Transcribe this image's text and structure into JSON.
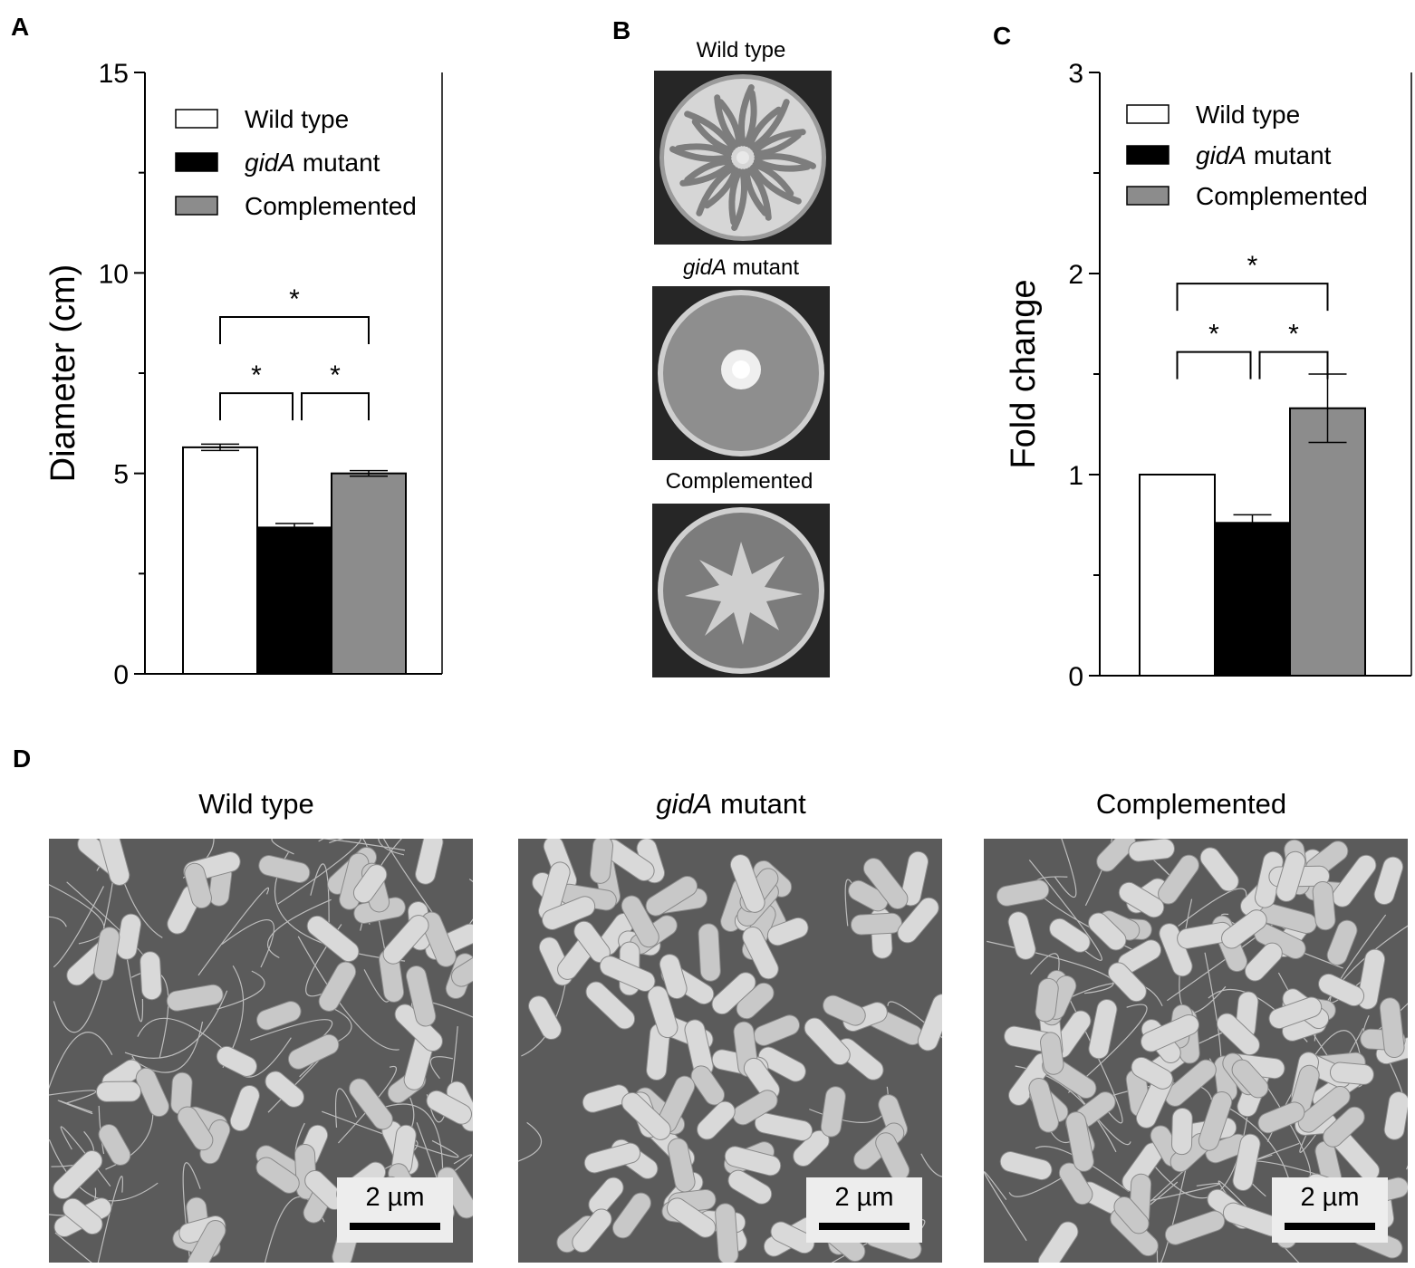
{
  "panels": {
    "a": "A",
    "b": "B",
    "c": "C",
    "d": "D"
  },
  "chart_data": [
    {
      "type": "bar",
      "panel": "A",
      "ylabel": "Diameter (cm)",
      "ylim": [
        0,
        15
      ],
      "yticks": [
        "0",
        "5",
        "10",
        "15"
      ],
      "categories": [
        "Wild type",
        "gidA mutant",
        "Complemented"
      ],
      "values": [
        5.65,
        3.65,
        5.0
      ],
      "errors": [
        0.08,
        0.1,
        0.07
      ],
      "colors": [
        "#ffffff",
        "#000000",
        "#8c8c8c"
      ],
      "legend": {
        "position": "top",
        "entries": [
          {
            "italic": "",
            "text": "Wild type"
          },
          {
            "italic": "gidA",
            "text": " mutant"
          },
          {
            "italic": "",
            "text": "Complemented"
          }
        ]
      },
      "significance": [
        {
          "from": 0,
          "to": 1,
          "label": "*",
          "y": 7.0
        },
        {
          "from": 1,
          "to": 2,
          "label": "*",
          "y": 7.0
        },
        {
          "from": 0,
          "to": 2,
          "label": "*",
          "y": 8.9
        }
      ]
    },
    {
      "type": "bar",
      "panel": "C",
      "ylabel": "Fold change",
      "ylim": [
        0,
        3
      ],
      "yticks": [
        "0",
        "1",
        "2",
        "3"
      ],
      "categories": [
        "Wild type",
        "gidA mutant",
        "Complemented"
      ],
      "values": [
        1.0,
        0.76,
        1.33
      ],
      "errors": [
        0.0,
        0.04,
        0.17
      ],
      "colors": [
        "#ffffff",
        "#000000",
        "#8c8c8c"
      ],
      "legend": {
        "position": "top",
        "entries": [
          {
            "italic": "",
            "text": "Wild type"
          },
          {
            "italic": "gidA",
            "text": " mutant"
          },
          {
            "italic": "",
            "text": "Complemented"
          }
        ]
      },
      "significance": [
        {
          "from": 0,
          "to": 1,
          "label": "*",
          "y": 1.61
        },
        {
          "from": 1,
          "to": 2,
          "label": "*",
          "y": 1.61
        },
        {
          "from": 0,
          "to": 2,
          "label": "*",
          "y": 1.95
        }
      ]
    }
  ],
  "plates": [
    {
      "italic": "",
      "text": "Wild type",
      "pattern": "dendritic"
    },
    {
      "italic": "gidA",
      "text": " mutant",
      "pattern": "colony"
    },
    {
      "italic": "",
      "text": "Complemented",
      "pattern": "irregular"
    }
  ],
  "sem": [
    {
      "italic": "",
      "text": "Wild type",
      "scale": "2 µm"
    },
    {
      "italic": "gidA",
      "text": " mutant",
      "scale": "2 µm"
    },
    {
      "italic": "",
      "text": "Complemented",
      "scale": "2 µm"
    }
  ]
}
